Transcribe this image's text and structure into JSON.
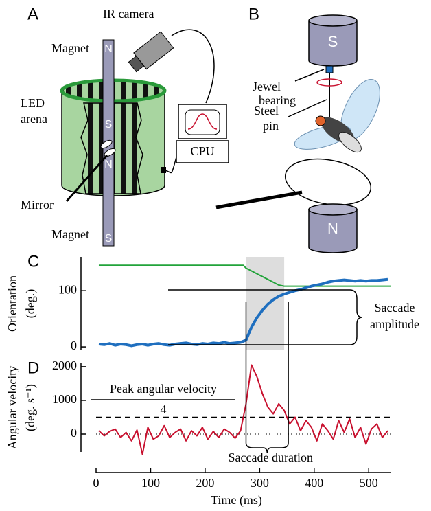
{
  "diagram": {
    "panel_a": "A",
    "panel_b": "B",
    "ir_camera": "IR camera",
    "magnet_top": "Magnet",
    "magnet_bottom": "Magnet",
    "led_arena": [
      "LED",
      "arena"
    ],
    "mirror": "Mirror",
    "cpu": "CPU",
    "rod_poles": [
      "N",
      "S",
      "N",
      "S"
    ],
    "b_magnet_top": "S",
    "b_magnet_bottom": "N",
    "jewel_bearing": [
      "Jewel",
      "bearing"
    ],
    "steel_pin": [
      "Steel",
      "pin"
    ]
  },
  "chart_data": [
    {
      "type": "line",
      "label": "C",
      "ylabel": [
        "Orientation",
        "(deg.)"
      ],
      "xlim": [
        0,
        540
      ],
      "ylim": [
        -6,
        160
      ],
      "yticks": [
        0,
        100
      ],
      "span": [
        275,
        345
      ],
      "span_color": "#dddddd",
      "annotation": [
        "Saccade",
        "amplitude"
      ],
      "series": [
        {
          "color": "#22a33a",
          "width": 2,
          "x": [
            5,
            270,
            275,
            285,
            295,
            305,
            315,
            325,
            335,
            345,
            540
          ],
          "values": [
            145,
            145,
            140,
            135,
            130,
            125,
            120,
            115,
            110,
            108,
            108
          ]
        },
        {
          "color": "#1f6fbf",
          "width": 4,
          "x": [
            5,
            15,
            25,
            35,
            45,
            55,
            65,
            75,
            85,
            95,
            105,
            115,
            125,
            135,
            145,
            155,
            165,
            175,
            185,
            195,
            205,
            215,
            225,
            235,
            245,
            255,
            265,
            275,
            285,
            295,
            305,
            315,
            325,
            335,
            345,
            355,
            365,
            375,
            385,
            395,
            405,
            415,
            425,
            435,
            445,
            455,
            465,
            475,
            485,
            495,
            505,
            515,
            525,
            535
          ],
          "values": [
            5,
            4,
            6,
            3,
            5,
            4,
            2,
            4,
            5,
            3,
            5,
            6,
            4,
            3,
            5,
            6,
            7,
            5,
            4,
            6,
            5,
            7,
            6,
            8,
            6,
            7,
            8,
            12,
            35,
            52,
            65,
            76,
            84,
            90,
            94,
            97,
            100,
            102,
            105,
            108,
            110,
            112,
            115,
            117,
            118,
            119,
            118,
            117,
            118,
            117,
            118,
            118,
            119,
            120
          ]
        }
      ]
    },
    {
      "type": "line",
      "label": "D",
      "ylabel": [
        "Angular velocity",
        "(deg. s⁻¹)"
      ],
      "xlabel": "Time (ms)",
      "xlim": [
        0,
        540
      ],
      "xticks": [
        0,
        100,
        200,
        300,
        400,
        500
      ],
      "ylim": [
        -530,
        2100
      ],
      "yticks": [
        0,
        1000,
        2000
      ],
      "hlines": [
        {
          "value": 500,
          "style": "dashed"
        },
        {
          "value": 0,
          "style": "dotted"
        }
      ],
      "annotation": [
        "Peak angular velocity",
        "4"
      ],
      "duration_label": "Saccade duration",
      "series": [
        {
          "color": "#c8102e",
          "width": 2,
          "x": [
            5,
            15,
            25,
            35,
            45,
            55,
            65,
            75,
            85,
            95,
            105,
            115,
            125,
            135,
            145,
            155,
            165,
            175,
            185,
            195,
            205,
            215,
            225,
            235,
            245,
            255,
            265,
            275,
            285,
            295,
            305,
            315,
            325,
            335,
            345,
            355,
            365,
            375,
            385,
            395,
            405,
            415,
            425,
            435,
            445,
            455,
            465,
            475,
            485,
            495,
            505,
            515,
            525,
            535
          ],
          "values": [
            100,
            -50,
            80,
            150,
            -100,
            50,
            -200,
            120,
            -600,
            200,
            -150,
            -50,
            250,
            -100,
            50,
            150,
            -200,
            100,
            -50,
            200,
            -150,
            80,
            -100,
            150,
            50,
            -120,
            100,
            900,
            2050,
            1700,
            1200,
            800,
            600,
            900,
            700,
            300,
            500,
            100,
            400,
            200,
            -200,
            300,
            100,
            -150,
            400,
            50,
            450,
            -100,
            200,
            -300,
            150,
            300,
            -100,
            100
          ]
        }
      ]
    }
  ]
}
